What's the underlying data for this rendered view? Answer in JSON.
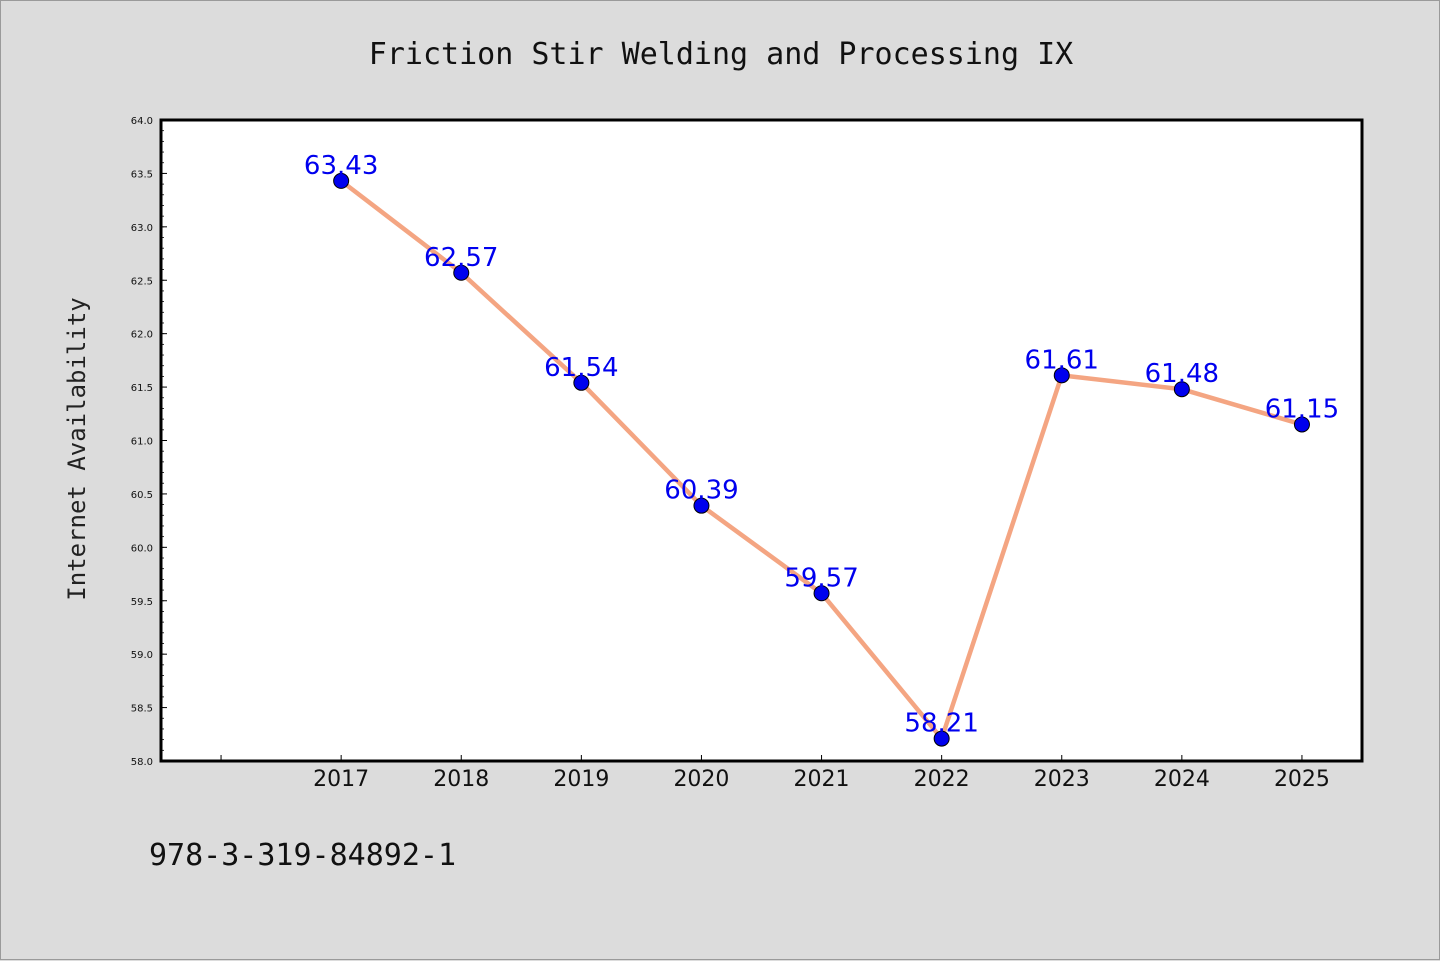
{
  "page": {
    "background": "#dcdcdc",
    "footer_text": "978-3-319-84892-1"
  },
  "chart_data": {
    "type": "line",
    "title": "Friction Stir Welding and Processing IX",
    "xlabel": "",
    "ylabel": "Internet Availability",
    "categories": [
      "2017",
      "2018",
      "2019",
      "2020",
      "2021",
      "2022",
      "2023",
      "2024",
      "2025"
    ],
    "values": [
      63.43,
      62.57,
      61.54,
      60.39,
      59.57,
      58.21,
      61.61,
      61.48,
      61.15
    ],
    "ylim": [
      58.0,
      64.0
    ],
    "xlim": [
      2015.5,
      2025.5
    ],
    "yticks": [
      "58.0",
      "58.5",
      "59.0",
      "59.5",
      "60.0",
      "60.5",
      "61.0",
      "61.5",
      "62.0",
      "62.5",
      "63.0",
      "63.5",
      "64.0"
    ],
    "grid": false,
    "legend": "none",
    "line_color": "#f4a582",
    "marker_color": "#0000ee",
    "label_color": "#0000ee",
    "plot_background": "#ffffff"
  }
}
